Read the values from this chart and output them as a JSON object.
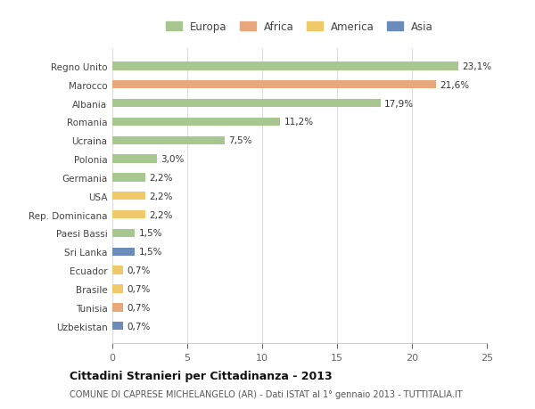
{
  "countries": [
    "Regno Unito",
    "Marocco",
    "Albania",
    "Romania",
    "Ucraina",
    "Polonia",
    "Germania",
    "USA",
    "Rep. Dominicana",
    "Paesi Bassi",
    "Sri Lanka",
    "Ecuador",
    "Brasile",
    "Tunisia",
    "Uzbekistan"
  ],
  "values": [
    23.1,
    21.6,
    17.9,
    11.2,
    7.5,
    3.0,
    2.2,
    2.2,
    2.2,
    1.5,
    1.5,
    0.7,
    0.7,
    0.7,
    0.7
  ],
  "labels": [
    "23,1%",
    "21,6%",
    "17,9%",
    "11,2%",
    "7,5%",
    "3,0%",
    "2,2%",
    "2,2%",
    "2,2%",
    "1,5%",
    "1,5%",
    "0,7%",
    "0,7%",
    "0,7%",
    "0,7%"
  ],
  "continents": [
    "Europa",
    "Africa",
    "Europa",
    "Europa",
    "Europa",
    "Europa",
    "Europa",
    "America",
    "America",
    "Europa",
    "Asia",
    "America",
    "America",
    "Africa",
    "Asia"
  ],
  "continent_colors": {
    "Europa": "#a8c68f",
    "Africa": "#e8a87c",
    "America": "#f0c96a",
    "Asia": "#6b8cba"
  },
  "legend_order": [
    "Europa",
    "Africa",
    "America",
    "Asia"
  ],
  "title": "Cittadini Stranieri per Cittadinanza - 2013",
  "subtitle": "COMUNE DI CAPRESE MICHELANGELO (AR) - Dati ISTAT al 1° gennaio 2013 - TUTTITALIA.IT",
  "xlim": [
    0,
    25
  ],
  "xticks": [
    0,
    5,
    10,
    15,
    20,
    25
  ],
  "background_color": "#ffffff",
  "grid_color": "#dddddd",
  "bar_height": 0.45
}
